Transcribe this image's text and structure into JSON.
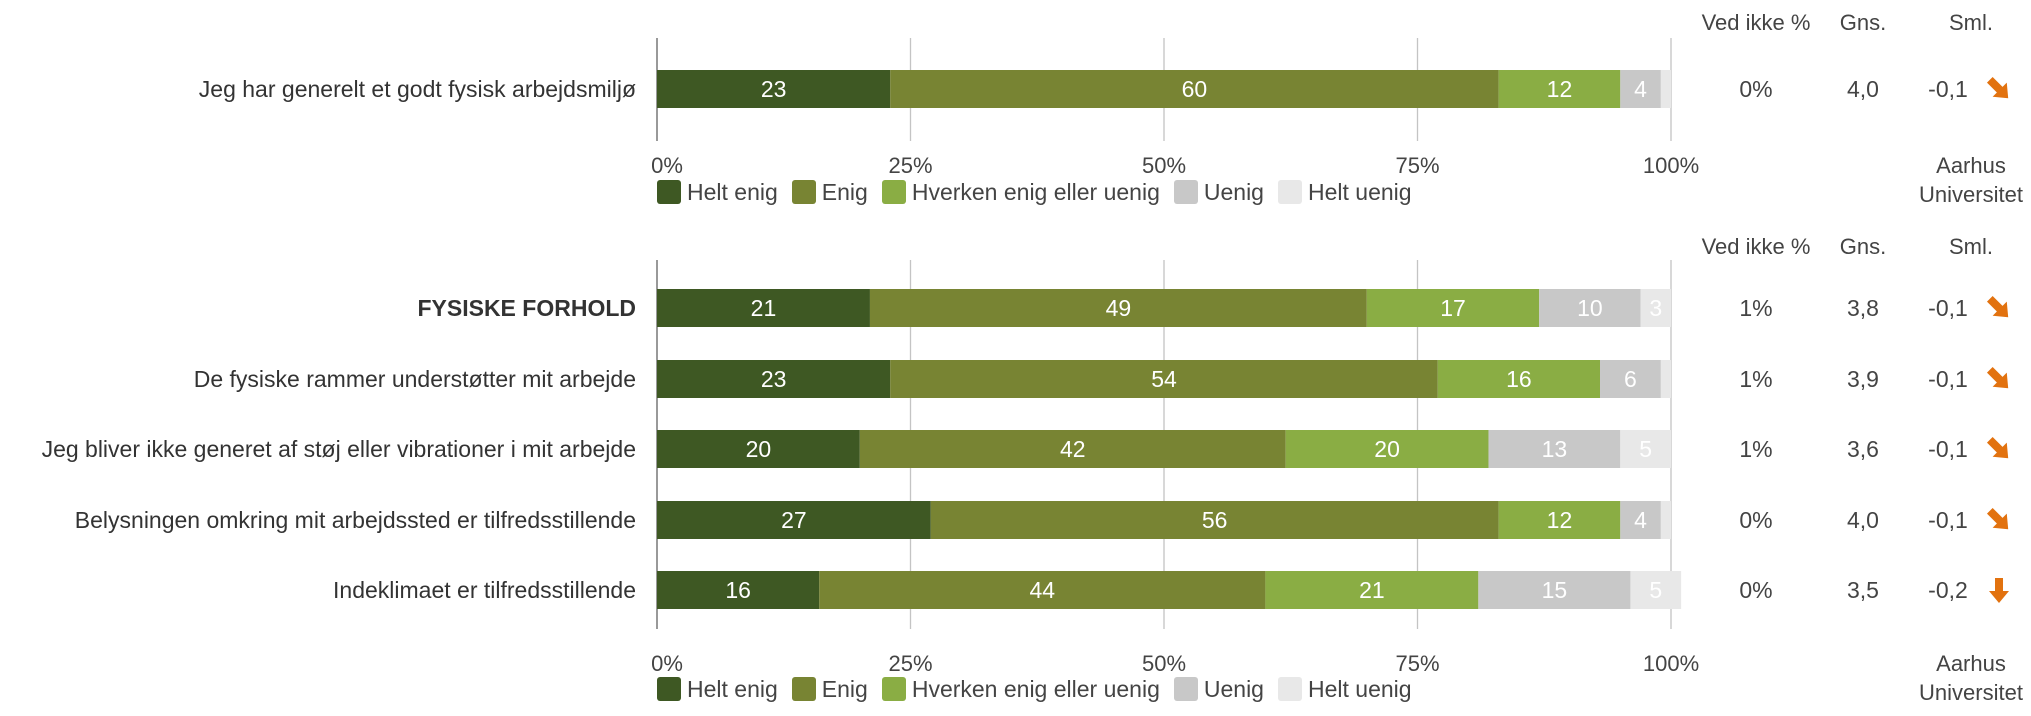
{
  "headers": {
    "ved_ikke": "Ved ikke %",
    "gns": "Gns.",
    "sml": "Sml."
  },
  "compare_label_line1": "Aarhus",
  "compare_label_line2": "Universitet",
  "legend": [
    {
      "label": "Helt enig",
      "color": "#3e5823"
    },
    {
      "label": "Enig",
      "color": "#788433"
    },
    {
      "label": "Hverken enig eller uenig",
      "color": "#8aad44"
    },
    {
      "label": "Uenig",
      "color": "#c8c8c8"
    },
    {
      "label": "Helt uenig",
      "color": "#e8e8e8"
    }
  ],
  "arrow_color": "#e2720f",
  "chart_data": [
    {
      "type": "bar",
      "orientation": "horizontal-stacked",
      "xlim": [
        0,
        100
      ],
      "x_ticks": [
        "0%",
        "25%",
        "50%",
        "75%",
        "100%"
      ],
      "grid": true,
      "legend_position": "bottom",
      "categories": [
        "Jeg har generelt et godt fysisk arbejdsmiljø"
      ],
      "bold": [
        false
      ],
      "series": [
        {
          "name": "Helt enig",
          "values": [
            23
          ]
        },
        {
          "name": "Enig",
          "values": [
            60
          ]
        },
        {
          "name": "Hverken enig eller uenig",
          "values": [
            12
          ]
        },
        {
          "name": "Uenig",
          "values": [
            4
          ]
        },
        {
          "name": "Helt uenig",
          "values": [
            1
          ]
        }
      ],
      "ved_ikke": [
        "0%"
      ],
      "gns": [
        "4,0"
      ],
      "sml": [
        "-0,1"
      ],
      "sml_arrow": [
        "down-right"
      ]
    },
    {
      "type": "bar",
      "orientation": "horizontal-stacked",
      "xlim": [
        0,
        100
      ],
      "x_ticks": [
        "0%",
        "25%",
        "50%",
        "75%",
        "100%"
      ],
      "grid": true,
      "legend_position": "bottom",
      "categories": [
        "FYSISKE FORHOLD",
        "De fysiske rammer understøtter mit arbejde",
        "Jeg bliver ikke generet af støj eller vibrationer i mit arbejde",
        "Belysningen omkring mit arbejdssted er tilfredsstillende",
        "Indeklimaet er tilfredsstillende"
      ],
      "bold": [
        true,
        false,
        false,
        false,
        false
      ],
      "series": [
        {
          "name": "Helt enig",
          "values": [
            21,
            23,
            20,
            27,
            16
          ]
        },
        {
          "name": "Enig",
          "values": [
            49,
            54,
            42,
            56,
            44
          ]
        },
        {
          "name": "Hverken enig eller uenig",
          "values": [
            17,
            16,
            20,
            12,
            21
          ]
        },
        {
          "name": "Uenig",
          "values": [
            10,
            6,
            13,
            4,
            15
          ]
        },
        {
          "name": "Helt uenig",
          "values": [
            3,
            1,
            5,
            1,
            5
          ]
        }
      ],
      "ved_ikke": [
        "1%",
        "1%",
        "1%",
        "0%",
        "0%"
      ],
      "gns": [
        "3,8",
        "3,9",
        "3,6",
        "4,0",
        "3,5"
      ],
      "sml": [
        "-0,1",
        "-0,1",
        "-0,1",
        "-0,1",
        "-0,2"
      ],
      "sml_arrow": [
        "down-right",
        "down-right",
        "down-right",
        "down-right",
        "down"
      ]
    }
  ]
}
